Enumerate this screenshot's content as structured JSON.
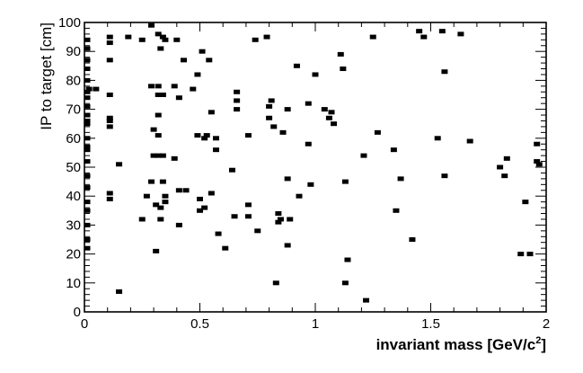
{
  "chart_data": {
    "type": "scatter",
    "title": "",
    "xlabel": "invariant mass  [GeV/c",
    "xlabel_sup": "2",
    "xlabel_end": "]",
    "ylabel": "IP to target  [cm]",
    "xlim": [
      0,
      2
    ],
    "ylim": [
      0,
      100
    ],
    "grid": false,
    "marker_color": "#000000",
    "x_ticks": [
      {
        "value": 0,
        "label": "0"
      },
      {
        "value": 0.5,
        "label": "0.5"
      },
      {
        "value": 1,
        "label": "1"
      },
      {
        "value": 1.5,
        "label": "1.5"
      },
      {
        "value": 2,
        "label": "2"
      }
    ],
    "y_ticks": [
      {
        "value": 0,
        "label": "0"
      },
      {
        "value": 10,
        "label": "10"
      },
      {
        "value": 20,
        "label": "20"
      },
      {
        "value": 30,
        "label": "30"
      },
      {
        "value": 40,
        "label": "40"
      },
      {
        "value": 50,
        "label": "50"
      },
      {
        "value": 60,
        "label": "60"
      },
      {
        "value": 70,
        "label": "70"
      },
      {
        "value": 80,
        "label": "80"
      },
      {
        "value": 90,
        "label": "90"
      },
      {
        "value": 100,
        "label": "100"
      }
    ],
    "points": [
      [
        0.0,
        94
      ],
      [
        0.0,
        91
      ],
      [
        0.0,
        87
      ],
      [
        0.0,
        84
      ],
      [
        0.0,
        80
      ],
      [
        0.0,
        76
      ],
      [
        0.0,
        74
      ],
      [
        0.0,
        71
      ],
      [
        0.0,
        68
      ],
      [
        0.0,
        65
      ],
      [
        0.0,
        60
      ],
      [
        0.0,
        56
      ],
      [
        0.0,
        52
      ],
      [
        0.0,
        47
      ],
      [
        0.0,
        43
      ],
      [
        0.0,
        38
      ],
      [
        0.0,
        35
      ],
      [
        0.0,
        30
      ],
      [
        0.0,
        25
      ],
      [
        0.0,
        22
      ],
      [
        0.01,
        66
      ],
      [
        0.01,
        57
      ],
      [
        0.02,
        77
      ],
      [
        0.05,
        77
      ],
      [
        0.11,
        95
      ],
      [
        0.11,
        93
      ],
      [
        0.11,
        87
      ],
      [
        0.11,
        75
      ],
      [
        0.11,
        67
      ],
      [
        0.11,
        66
      ],
      [
        0.11,
        64
      ],
      [
        0.11,
        41
      ],
      [
        0.11,
        39
      ],
      [
        0.15,
        51
      ],
      [
        0.15,
        7
      ],
      [
        0.19,
        95
      ],
      [
        0.25,
        94
      ],
      [
        0.25,
        32
      ],
      [
        0.27,
        40
      ],
      [
        0.29,
        99
      ],
      [
        0.29,
        78
      ],
      [
        0.29,
        45
      ],
      [
        0.3,
        63
      ],
      [
        0.3,
        54
      ],
      [
        0.31,
        37
      ],
      [
        0.31,
        21
      ],
      [
        0.32,
        96
      ],
      [
        0.32,
        78
      ],
      [
        0.32,
        75
      ],
      [
        0.32,
        68
      ],
      [
        0.32,
        61
      ],
      [
        0.32,
        54
      ],
      [
        0.33,
        91
      ],
      [
        0.33,
        36
      ],
      [
        0.33,
        32
      ],
      [
        0.34,
        95
      ],
      [
        0.34,
        75
      ],
      [
        0.34,
        54
      ],
      [
        0.34,
        45
      ],
      [
        0.35,
        94
      ],
      [
        0.35,
        40
      ],
      [
        0.35,
        38
      ],
      [
        0.39,
        78
      ],
      [
        0.39,
        53
      ],
      [
        0.4,
        94
      ],
      [
        0.41,
        74
      ],
      [
        0.41,
        42
      ],
      [
        0.41,
        30
      ],
      [
        0.43,
        87
      ],
      [
        0.44,
        42
      ],
      [
        0.47,
        77
      ],
      [
        0.49,
        82
      ],
      [
        0.49,
        61
      ],
      [
        0.5,
        39
      ],
      [
        0.5,
        35
      ],
      [
        0.51,
        90
      ],
      [
        0.52,
        60
      ],
      [
        0.52,
        36
      ],
      [
        0.53,
        61
      ],
      [
        0.54,
        87
      ],
      [
        0.55,
        69
      ],
      [
        0.55,
        41
      ],
      [
        0.57,
        60
      ],
      [
        0.57,
        56
      ],
      [
        0.58,
        27
      ],
      [
        0.61,
        22
      ],
      [
        0.64,
        49
      ],
      [
        0.65,
        33
      ],
      [
        0.66,
        73
      ],
      [
        0.66,
        70
      ],
      [
        0.66,
        76
      ],
      [
        0.71,
        61
      ],
      [
        0.71,
        37
      ],
      [
        0.71,
        33
      ],
      [
        0.74,
        94
      ],
      [
        0.75,
        28
      ],
      [
        0.79,
        95
      ],
      [
        0.8,
        71
      ],
      [
        0.8,
        67
      ],
      [
        0.81,
        73
      ],
      [
        0.82,
        64
      ],
      [
        0.83,
        10
      ],
      [
        0.84,
        34
      ],
      [
        0.84,
        31
      ],
      [
        0.85,
        32
      ],
      [
        0.86,
        62
      ],
      [
        0.88,
        70
      ],
      [
        0.88,
        46
      ],
      [
        0.88,
        23
      ],
      [
        0.89,
        32
      ],
      [
        0.92,
        85
      ],
      [
        0.93,
        40
      ],
      [
        0.97,
        72
      ],
      [
        0.97,
        58
      ],
      [
        0.98,
        44
      ],
      [
        1.0,
        82
      ],
      [
        1.04,
        70
      ],
      [
        1.06,
        67
      ],
      [
        1.07,
        69
      ],
      [
        1.08,
        65
      ],
      [
        1.11,
        89
      ],
      [
        1.12,
        84
      ],
      [
        1.13,
        45
      ],
      [
        1.13,
        10
      ],
      [
        1.14,
        18
      ],
      [
        1.21,
        54
      ],
      [
        1.22,
        4
      ],
      [
        1.25,
        95
      ],
      [
        1.27,
        62
      ],
      [
        1.34,
        56
      ],
      [
        1.35,
        35
      ],
      [
        1.37,
        46
      ],
      [
        1.42,
        25
      ],
      [
        1.45,
        97
      ],
      [
        1.47,
        95
      ],
      [
        1.53,
        60
      ],
      [
        1.55,
        97
      ],
      [
        1.56,
        83
      ],
      [
        1.56,
        47
      ],
      [
        1.63,
        96
      ],
      [
        1.67,
        59
      ],
      [
        1.8,
        50
      ],
      [
        1.82,
        47
      ],
      [
        1.83,
        53
      ],
      [
        1.89,
        20
      ],
      [
        1.91,
        38
      ],
      [
        1.93,
        20
      ],
      [
        1.96,
        58
      ],
      [
        1.96,
        52
      ],
      [
        1.97,
        51
      ]
    ]
  }
}
